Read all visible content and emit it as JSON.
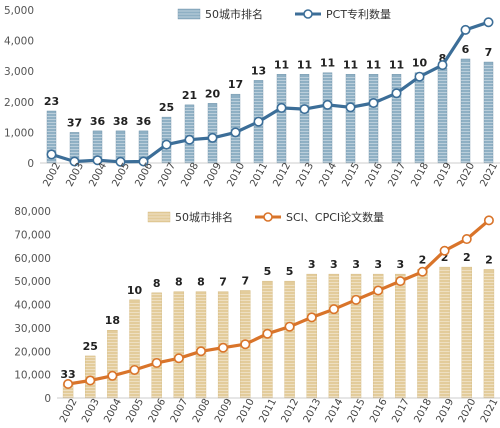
{
  "chart_data": [
    {
      "type": "bar",
      "categories": [
        "2002",
        "2003",
        "2004",
        "2005",
        "2006",
        "2007",
        "2008",
        "2009",
        "2010",
        "2011",
        "2012",
        "2013",
        "2014",
        "2015",
        "2016",
        "2017",
        "2018",
        "2019",
        "2020",
        "2021"
      ],
      "series": [
        {
          "name": "50城市排名",
          "kind": "bar",
          "values": [
            1700,
            1000,
            1050,
            1050,
            1050,
            1500,
            1900,
            1950,
            2250,
            2700,
            2900,
            2900,
            2950,
            2900,
            2900,
            2900,
            2950,
            3100,
            3400,
            3300
          ],
          "color": "#8fb0c4"
        },
        {
          "name": "PCT专利数量",
          "kind": "line",
          "values": [
            280,
            50,
            90,
            40,
            50,
            600,
            760,
            820,
            1000,
            1350,
            1800,
            1760,
            1900,
            1820,
            1960,
            2280,
            2820,
            3200,
            4350,
            4600
          ],
          "color": "#3c6e98"
        }
      ],
      "bar_labels": [
        "23",
        "37",
        "36",
        "38",
        "36",
        "25",
        "21",
        "20",
        "17",
        "13",
        "11",
        "11",
        "11",
        "11",
        "11",
        "11",
        "10",
        "8",
        "6",
        "7"
      ],
      "ylim": [
        0,
        5000
      ],
      "yticks": [
        "0",
        "1,000",
        "2,000",
        "3,000",
        "4,000",
        "5,000"
      ],
      "legend": "top-center"
    },
    {
      "type": "bar",
      "categories": [
        "2002",
        "2003",
        "2004",
        "2005",
        "2006",
        "2007",
        "2008",
        "2009",
        "2010",
        "2011",
        "2012",
        "2013",
        "2014",
        "2015",
        "2016",
        "2017",
        "2018",
        "2019",
        "2020",
        "2021"
      ],
      "series": [
        {
          "name": "50城市排名",
          "kind": "bar",
          "values": [
            6000,
            18000,
            29000,
            42000,
            45000,
            45500,
            45500,
            45500,
            46000,
            50000,
            50000,
            53000,
            53000,
            53000,
            53000,
            53000,
            55000,
            56000,
            56000,
            55000
          ],
          "color": "#e3cc9b"
        },
        {
          "name": "SCI、CPCI论文数量",
          "kind": "line",
          "values": [
            6000,
            7500,
            9500,
            12000,
            15000,
            17000,
            20000,
            21500,
            23000,
            27500,
            30500,
            34500,
            38000,
            42000,
            46000,
            50000,
            54000,
            63000,
            68000,
            76000
          ],
          "color": "#d9742a"
        }
      ],
      "bar_labels": [
        "33",
        "25",
        "18",
        "10",
        "8",
        "8",
        "8",
        "7",
        "7",
        "5",
        "5",
        "3",
        "3",
        "3",
        "3",
        "3",
        "2",
        "2",
        "2",
        "2"
      ],
      "ylim": [
        0,
        80000
      ],
      "yticks": [
        "0",
        "10,000",
        "20,000",
        "30,000",
        "40,000",
        "50,000",
        "60,000",
        "70,000",
        "80,000"
      ],
      "legend": "top-center"
    }
  ]
}
